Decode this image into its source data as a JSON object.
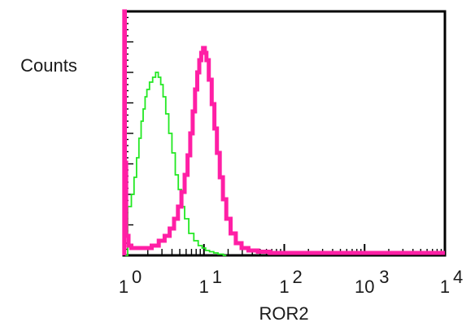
{
  "chart_data": {
    "type": "line",
    "title": "",
    "xlabel": "ROR2",
    "ylabel": "Counts",
    "x_scale": "log",
    "xlim": [
      1,
      10000
    ],
    "ylim": [
      0,
      100
    ],
    "grid": false,
    "legend": "none",
    "x_tick_labels": [
      {
        "base": "1",
        "exp": "0"
      },
      {
        "base": "1",
        "exp": "1"
      },
      {
        "base": "1",
        "exp": "2"
      },
      {
        "base": "10",
        "exp": "3"
      },
      {
        "base": "1",
        "exp": "4"
      }
    ],
    "series": [
      {
        "color": "#22e822",
        "stroke": "thin",
        "x": [
          1.05,
          1.2,
          1.3,
          1.4,
          1.5,
          1.6,
          1.7,
          1.8,
          1.9,
          2.0,
          2.2,
          2.4,
          2.6,
          2.8,
          3.0,
          3.2,
          3.5,
          3.8,
          4.2,
          4.6,
          5.0,
          5.5,
          6.0,
          7.0,
          8.0,
          9.0,
          10.0,
          11.0,
          12.5,
          14.0,
          16.0,
          19.0
        ],
        "y": [
          0,
          20,
          25,
          32,
          40,
          48,
          55,
          60,
          65,
          68,
          71,
          73,
          75,
          73,
          70,
          65,
          58,
          50,
          42,
          33,
          27,
          20,
          15,
          9,
          6,
          4,
          3,
          2,
          1.5,
          1,
          0.5,
          0
        ]
      },
      {
        "color": "#ff1fa5",
        "stroke": "thick",
        "x": [
          1.02,
          1.05,
          1.1,
          1.2,
          1.3,
          1.5,
          1.7,
          2.0,
          2.5,
          3.0,
          3.5,
          4.0,
          4.5,
          5.0,
          5.5,
          6.0,
          6.5,
          7.0,
          7.5,
          8.0,
          8.5,
          9.0,
          9.5,
          10.0,
          10.5,
          11.0,
          12.0,
          13.0,
          14.0,
          15.0,
          16.5,
          18.0,
          20.0,
          23.0,
          27.0,
          32.0,
          40.0,
          55.0,
          80.0,
          150.0,
          300.0,
          1000.0,
          3000.0,
          10000.0
        ],
        "y": [
          100,
          38,
          8,
          4,
          3,
          3,
          3,
          3,
          4,
          6,
          8,
          11,
          15,
          20,
          26,
          33,
          41,
          50,
          59,
          68,
          75,
          80,
          83,
          85,
          83,
          80,
          72,
          62,
          52,
          42,
          32,
          23,
          15,
          9,
          5,
          3,
          2,
          1.5,
          1,
          1,
          1,
          1,
          1,
          1
        ]
      }
    ]
  }
}
